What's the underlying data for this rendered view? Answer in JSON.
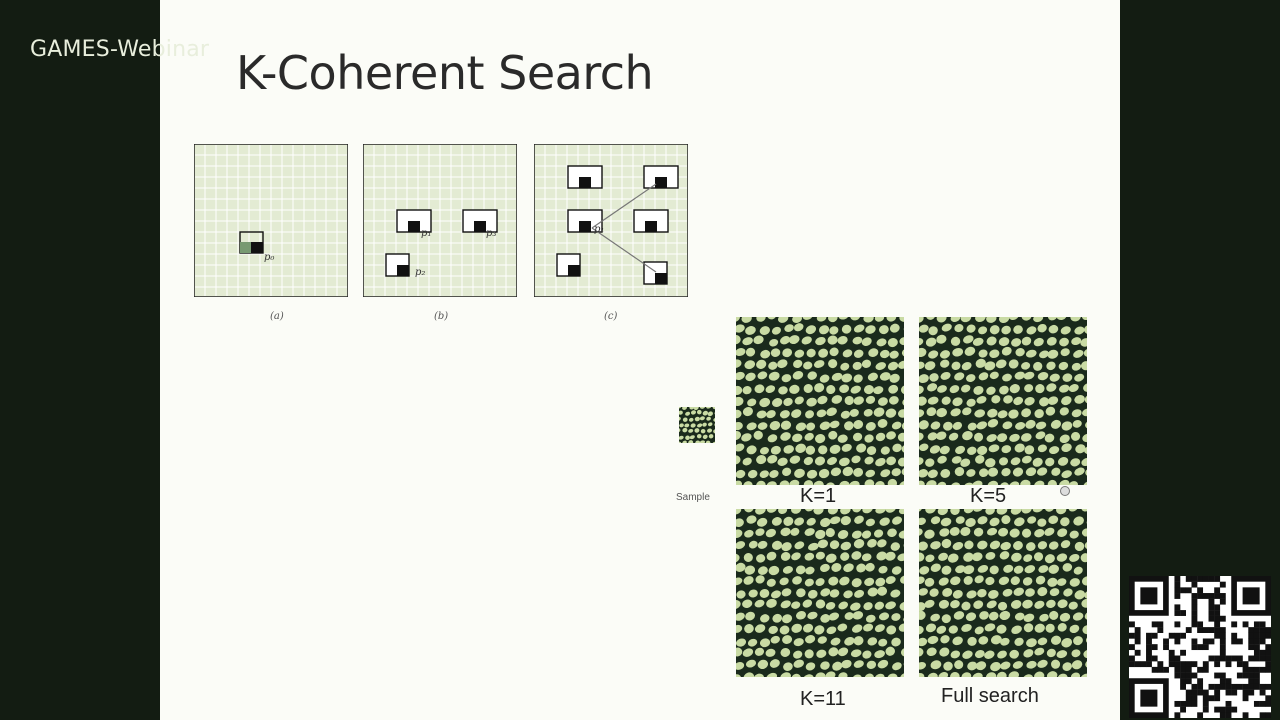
{
  "watermark": {
    "text": "GAMES-Webinar",
    "cjk_text": ""
  },
  "slide": {
    "title": "K-Coherent Search",
    "figures": [
      {
        "caption": "(a)",
        "labels": [
          "p₀"
        ]
      },
      {
        "caption": "(b)",
        "labels": [
          "p₁",
          "p₂",
          "p₃"
        ]
      },
      {
        "caption": "(c)",
        "labels": [
          "p₁"
        ]
      }
    ],
    "sample_label": "Sample",
    "results": [
      {
        "label": "K=1"
      },
      {
        "label": "K=5"
      },
      {
        "label": "K=11"
      },
      {
        "label": "Full search"
      }
    ]
  },
  "colors": {
    "background_dark": "#131c12",
    "slide_bg": "#fbfcf7",
    "grid_fill": "#e3ebd3",
    "grid_line": "#ffffff",
    "texture_light": "#c9dba4",
    "texture_dark": "#1a2a1c"
  },
  "icons": {
    "qr_code": "qr-code-icon",
    "cursor": "cursor-icon"
  }
}
